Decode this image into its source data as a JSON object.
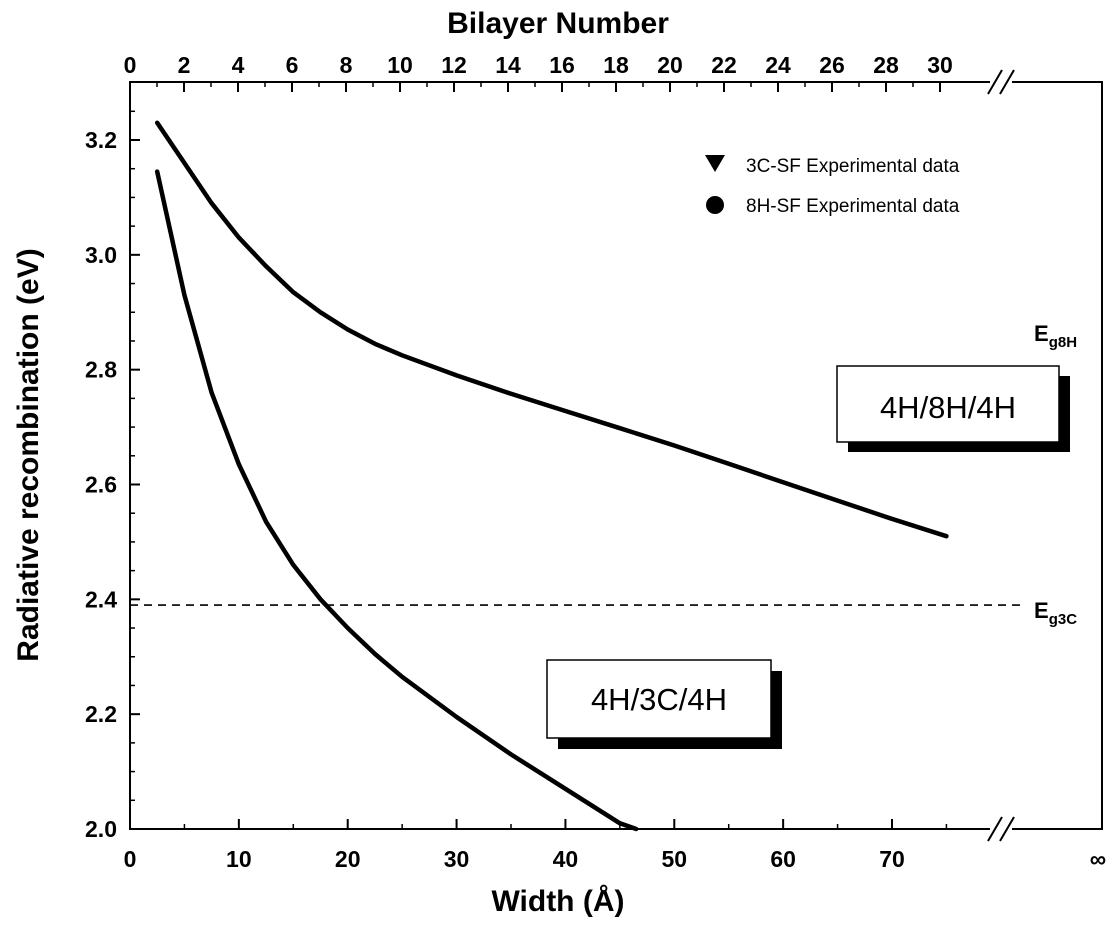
{
  "chart_data": {
    "type": "line",
    "title": "",
    "xlabel": "Width (Å)",
    "ylabel": "Radiative recombination (eV)",
    "x2label": "Bilayer Number",
    "xlim": [
      0,
      75
    ],
    "ylim": [
      2.0,
      3.25
    ],
    "x_ticks": [
      0,
      10,
      20,
      30,
      40,
      50,
      60,
      70
    ],
    "x_tick_labels": [
      "0",
      "10",
      "20",
      "30",
      "40",
      "50",
      "60",
      "70"
    ],
    "x_infinity_label": "∞",
    "y_ticks": [
      2.0,
      2.2,
      2.4,
      2.6,
      2.8,
      3.0,
      3.2
    ],
    "y_tick_labels": [
      "2.0",
      "2.2",
      "2.4",
      "2.6",
      "2.8",
      "3.0",
      "3.2"
    ],
    "x2_ticks": [
      0,
      2,
      4,
      6,
      8,
      10,
      12,
      14,
      16,
      18,
      20,
      22,
      24,
      26,
      28,
      30
    ],
    "x2_tick_labels": [
      "0",
      "2",
      "4",
      "6",
      "8",
      "10",
      "12",
      "14",
      "16",
      "18",
      "20",
      "22",
      "24",
      "26",
      "28",
      "30"
    ],
    "series": [
      {
        "name": "4H/8H/4H",
        "x": [
          2.5,
          5,
          7.5,
          10,
          12.5,
          15,
          17.5,
          20,
          22.5,
          25,
          30,
          35,
          40,
          45,
          50,
          55,
          60,
          65,
          70,
          75
        ],
        "y": [
          3.23,
          3.16,
          3.09,
          3.03,
          2.98,
          2.935,
          2.9,
          2.87,
          2.845,
          2.825,
          2.79,
          2.758,
          2.728,
          2.698,
          2.668,
          2.636,
          2.604,
          2.572,
          2.54,
          2.51
        ]
      },
      {
        "name": "4H/3C/4H",
        "x": [
          2.5,
          5,
          7.5,
          10,
          12.5,
          15,
          17.5,
          20,
          22.5,
          25,
          30,
          35,
          40,
          45,
          46.5
        ],
        "y": [
          3.145,
          2.93,
          2.76,
          2.635,
          2.535,
          2.46,
          2.4,
          2.35,
          2.305,
          2.265,
          2.195,
          2.13,
          2.07,
          2.01,
          2.0
        ]
      }
    ],
    "reference_lines": [
      {
        "label_main": "E",
        "label_sub": "g3C",
        "y": 2.39,
        "style": "dashed"
      },
      {
        "label_main": "E",
        "label_sub": "g8H",
        "y": 2.82,
        "style": "none"
      }
    ],
    "legend": {
      "placement": "top-right",
      "entries": [
        {
          "marker": "triangle-down",
          "label": "3C-SF Experimental data"
        },
        {
          "marker": "circle",
          "label": "8H-SF Experimental data"
        }
      ]
    },
    "annotations": [
      {
        "text": "4H/8H/4H",
        "x": 52,
        "y": 2.68
      },
      {
        "text": "4H/3C/4H",
        "x": 38,
        "y": 2.19
      }
    ],
    "axis_break": "//",
    "grid": false
  }
}
